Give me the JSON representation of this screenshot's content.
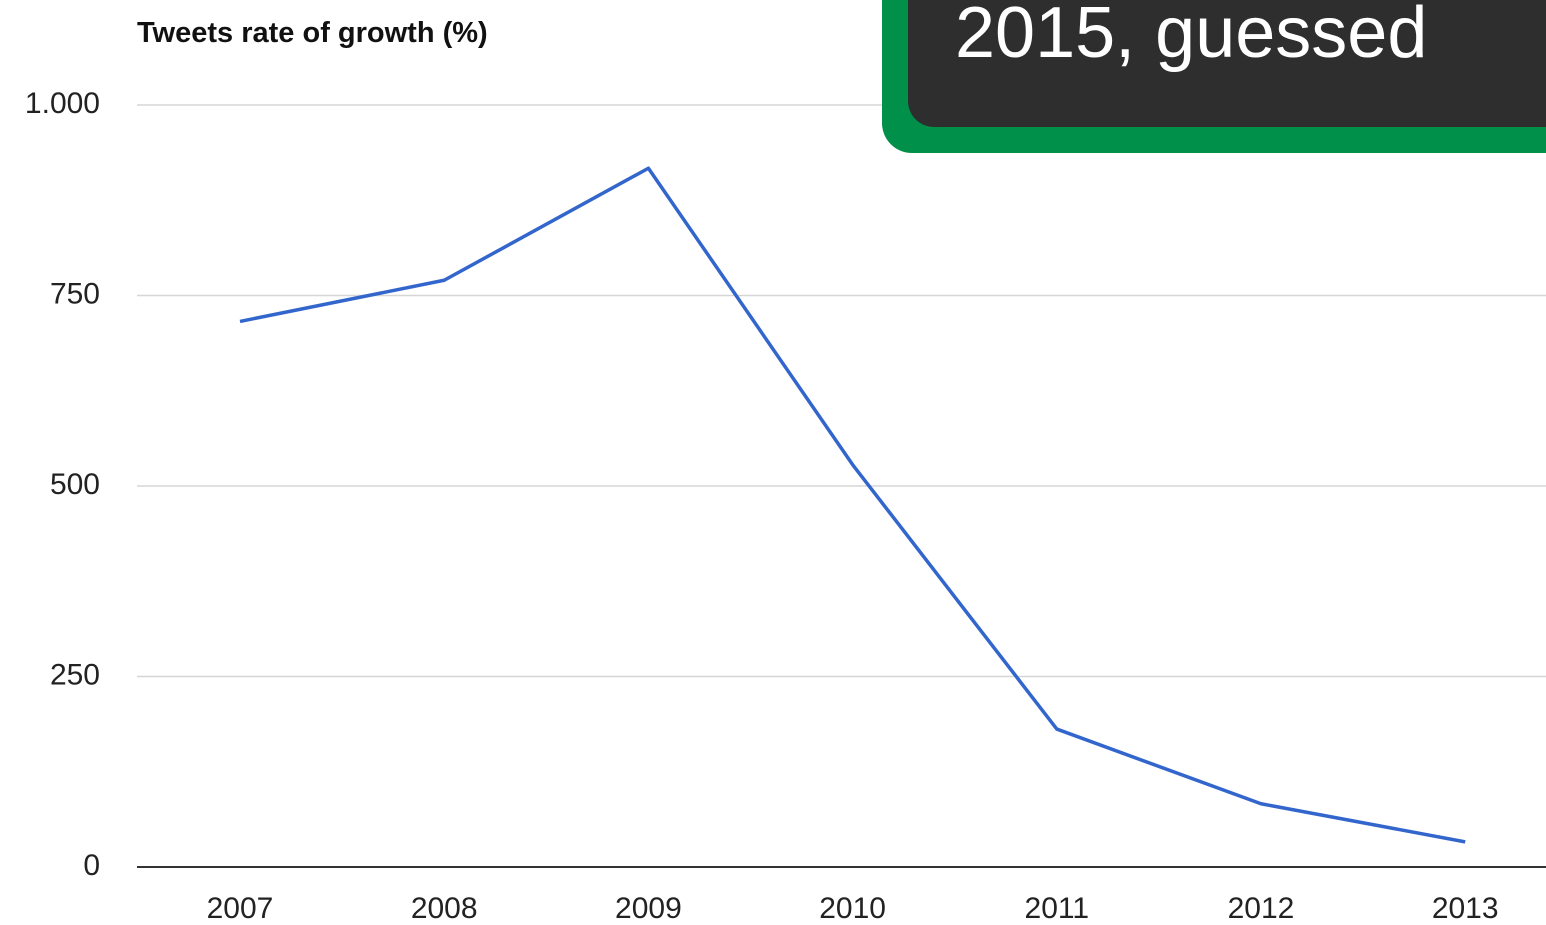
{
  "chart_data": {
    "type": "line",
    "title": "Tweets rate of growth (%)",
    "categories": [
      "2007",
      "2008",
      "2009",
      "2010",
      "2011",
      "2012",
      "2013"
    ],
    "series": [
      {
        "name": "Tweets rate of growth",
        "color": "#3366cc",
        "values": [
          716,
          770,
          917,
          528,
          181,
          83,
          33
        ]
      }
    ],
    "ylim": [
      0,
      1000
    ],
    "yticks": [
      0,
      250,
      500,
      750,
      {
        "value": 1000,
        "label": "1.000"
      }
    ],
    "grid": true
  },
  "overlay": {
    "text": "2015, guessed"
  }
}
